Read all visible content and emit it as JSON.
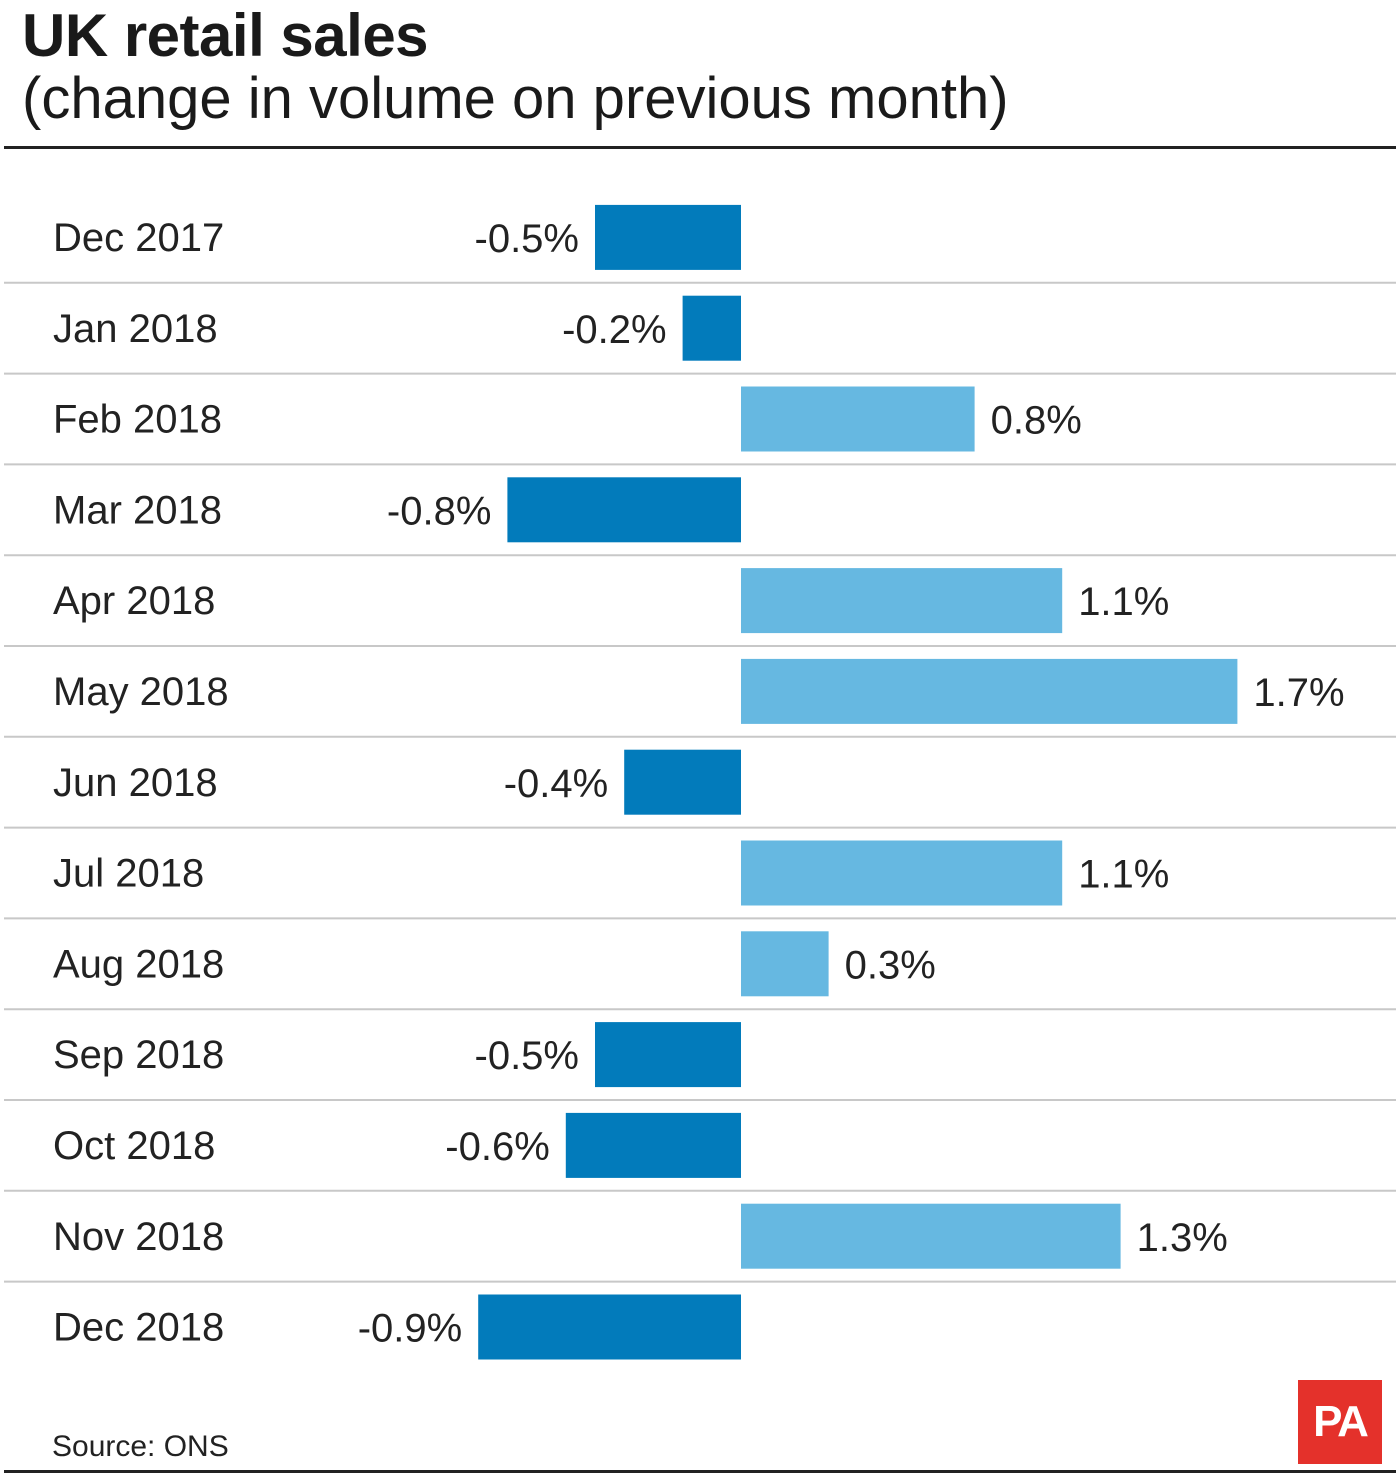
{
  "chart_data": {
    "type": "bar",
    "orientation": "horizontal",
    "title": "UK retail sales",
    "subtitle": "(change in volume on previous month)",
    "categories": [
      "Dec 2017",
      "Jan 2018",
      "Feb 2018",
      "Mar 2018",
      "Apr 2018",
      "May 2018",
      "Jun 2018",
      "Jul 2018",
      "Aug 2018",
      "Sep 2018",
      "Oct 2018",
      "Nov 2018",
      "Dec 2018"
    ],
    "values": [
      -0.5,
      -0.2,
      0.8,
      -0.8,
      1.1,
      1.7,
      -0.4,
      1.1,
      0.3,
      -0.5,
      -0.6,
      1.3,
      -0.9
    ],
    "value_labels": [
      "-0.5%",
      "-0.2%",
      "0.8%",
      "-0.8%",
      "1.1%",
      "1.7%",
      "-0.4%",
      "1.1%",
      "0.3%",
      "-0.5%",
      "-0.6%",
      "1.3%",
      "-0.9%"
    ],
    "unit": "%",
    "xlim": [
      -0.9,
      1.7
    ],
    "colors": {
      "negative": "#027bbb",
      "positive": "#66b8e1",
      "gridline": "#c8c8c8"
    }
  },
  "footer": {
    "source": "Source: ONS",
    "logo": "PA"
  }
}
